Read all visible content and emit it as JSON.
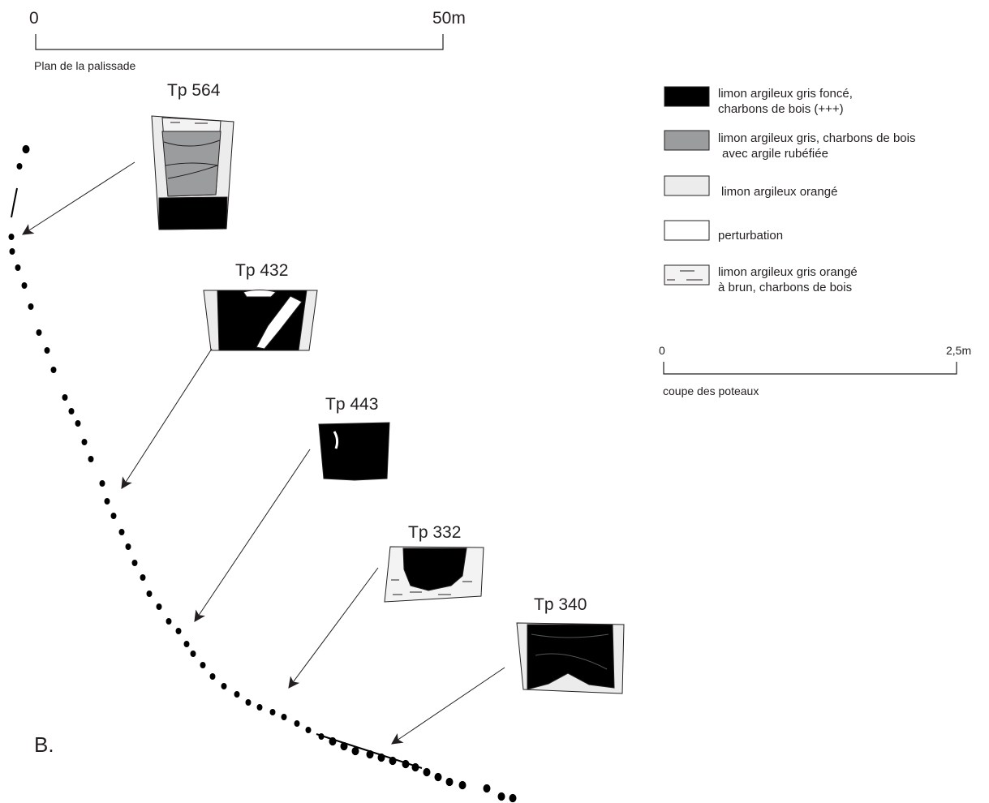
{
  "figure_label": "B.",
  "plan_scale": {
    "start": "0",
    "end": "50m",
    "caption": "Plan de la palissade"
  },
  "section_scale": {
    "start": "0",
    "end": "2,5m",
    "caption": "coupe des poteaux"
  },
  "sections": [
    {
      "label": "Tp 564"
    },
    {
      "label": "Tp 432"
    },
    {
      "label": "Tp 443"
    },
    {
      "label": "Tp 332"
    },
    {
      "label": "Tp 340"
    }
  ],
  "legend": [
    {
      "line1": "limon argileux gris foncé,",
      "line2": "charbons de bois (+++)",
      "fill": "#000000"
    },
    {
      "line1": "limon argileux gris, charbons de bois",
      "line2": "avec argile rubéfiée",
      "fill": "#9b9c9e"
    },
    {
      "line1": "limon argileux orangé",
      "line2": "",
      "fill": "#ececec"
    },
    {
      "line1": "perturbation",
      "line2": "",
      "fill": "#ffffff"
    },
    {
      "line1": "limon argileux gris orangé",
      "line2": "à brun, charbons de bois",
      "fill": "#f3f3f3",
      "pattern": "dashes"
    }
  ],
  "colors": {
    "ink": "#231f20",
    "dark_fill": "#000000",
    "grey_fill": "#9b9c9e",
    "light_fill": "#ececec"
  }
}
